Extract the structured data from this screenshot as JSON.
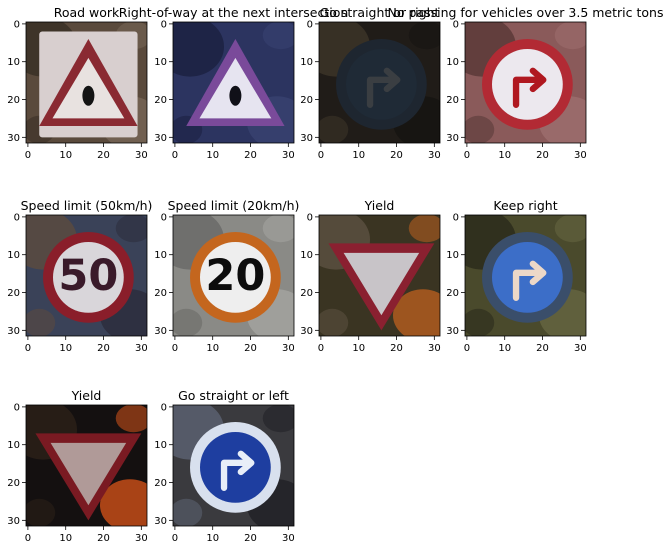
{
  "figure": {
    "background": "#ffffff",
    "text_color": "#000000",
    "axis_color": "#000000"
  },
  "chart_data": {
    "type": "image-grid",
    "image_size": [
      32,
      32
    ],
    "xticks": [
      0,
      10,
      20,
      30
    ],
    "yticks": [
      0,
      10,
      20,
      30
    ],
    "xlim": [
      -0.5,
      31.5
    ],
    "ylim": [
      31.5,
      -0.5
    ],
    "panels": [
      {
        "title": "Road work",
        "content": "triangular warning sign, road work",
        "sign": {
          "shape": "triangle-up",
          "plate": "#d8cfcf",
          "rim": "#8a2a32",
          "face": "#e8e2e0",
          "symbol": "#141414"
        },
        "bg": [
          "#5a4a3c",
          "#3a3026",
          "#7a6a5a"
        ]
      },
      {
        "title": "Right-of-way at the next intersection",
        "content": "triangular warning sign, right-of-way at next intersection",
        "sign": {
          "shape": "triangle-up",
          "plate": null,
          "rim": "#7a4a9a",
          "face": "#e6e4f0",
          "symbol": "#101018"
        },
        "bg": [
          "#2c3460",
          "#1c2242",
          "#3a4474"
        ]
      },
      {
        "title": "Go straight or right",
        "content": "round blue mandatory sign, go straight or right (dark)",
        "sign": {
          "shape": "circle",
          "plate": null,
          "rim": "#1e2630",
          "face": "#1f2a36",
          "symbol": "#3a3e42"
        },
        "bg": [
          "#201c18",
          "#3c3428",
          "#141210"
        ]
      },
      {
        "title": "No passing for vehicles over 3.5 metric tons",
        "content": "round prohibitory sign, no passing for trucks",
        "sign": {
          "shape": "circle",
          "plate": null,
          "rim": "#b22a34",
          "face": "#ece8ee",
          "symbol": "#b01820"
        },
        "bg": [
          "#8a5a5a",
          "#5a3a38",
          "#a07070"
        ]
      },
      {
        "title": "Speed limit (50km/h)",
        "content": "round speed limit sign, 50",
        "sign": {
          "shape": "circle",
          "plate": null,
          "rim": "#8a1e2a",
          "face": "#d9d6da",
          "symbol": "#3a1a2a",
          "text": "50"
        },
        "bg": [
          "#3a4258",
          "#5a4a40",
          "#2a2a38"
        ]
      },
      {
        "title": "Speed limit (20km/h)",
        "content": "round speed limit sign, 20",
        "sign": {
          "shape": "circle",
          "plate": null,
          "rim": "#c4661e",
          "face": "#eeeeee",
          "symbol": "#0c0c0c",
          "text": "20"
        },
        "bg": [
          "#8a8a86",
          "#6a6a68",
          "#a8a8a4"
        ]
      },
      {
        "title": "Yield",
        "content": "inverted triangle yield sign",
        "sign": {
          "shape": "triangle-down",
          "plate": null,
          "rim": "#8a2030",
          "face": "#c8c4c8",
          "symbol": null
        },
        "bg": [
          "#3a3422",
          "#5a5040",
          "#c8641e"
        ]
      },
      {
        "title": "Keep right",
        "content": "round blue mandatory sign, keep right",
        "sign": {
          "shape": "circle",
          "plate": null,
          "rim": "#3a4e6a",
          "face": "#3c6ec8",
          "symbol": "#ecd8c8"
        },
        "bg": [
          "#4a4a2c",
          "#2c2c1c",
          "#6a6a44"
        ]
      },
      {
        "title": "Yield",
        "content": "inverted triangle yield sign",
        "sign": {
          "shape": "triangle-down",
          "plate": null,
          "rim": "#7a1a22",
          "face": "#b09a98",
          "symbol": null
        },
        "bg": [
          "#141010",
          "#2a2018",
          "#e85a1a"
        ]
      },
      {
        "title": "Go straight or left",
        "content": "round blue mandatory sign, go straight or left",
        "sign": {
          "shape": "circle",
          "plate": null,
          "rim": "#d8e0ee",
          "face": "#1e3ea0",
          "symbol": "#e8eef8"
        },
        "bg": [
          "#3a3a3e",
          "#5a6070",
          "#1c1c22"
        ]
      }
    ]
  }
}
